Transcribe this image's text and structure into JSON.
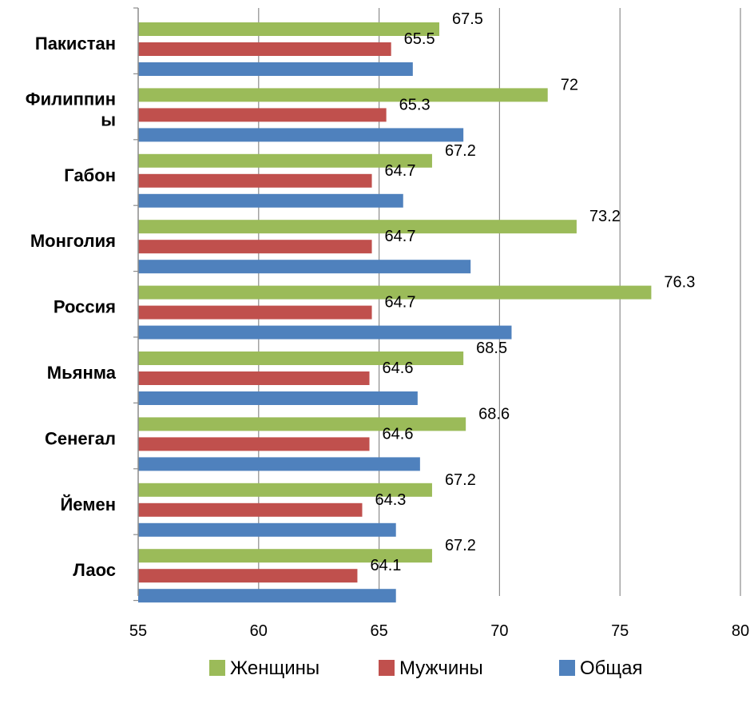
{
  "chart_data": {
    "type": "bar",
    "orientation": "horizontal",
    "categories": [
      "Пакистан",
      "Филиппины",
      "Габон",
      "Монголия",
      "Россия",
      "Мьянма",
      "Сенегал",
      "Йемен",
      "Лаос"
    ],
    "category_label_lines": [
      [
        "Пакистан"
      ],
      [
        "Филиппин",
        "ы"
      ],
      [
        "Габон"
      ],
      [
        "Монголия"
      ],
      [
        "Россия"
      ],
      [
        "Мьянма"
      ],
      [
        "Сенегал"
      ],
      [
        "Йемен"
      ],
      [
        "Лаос"
      ]
    ],
    "series": [
      {
        "name": "Женщины",
        "color": "#9BBB59",
        "values": [
          67.5,
          72,
          67.2,
          73.2,
          76.3,
          68.5,
          68.6,
          67.2,
          67.2
        ],
        "labels": [
          "67.5",
          "72",
          "67.2",
          "73.2",
          "76.3",
          "68.5",
          "68.6",
          "67.2",
          "67.2"
        ]
      },
      {
        "name": "Мужчины",
        "color": "#C0504D",
        "values": [
          65.5,
          65.3,
          64.7,
          64.7,
          64.7,
          64.6,
          64.6,
          64.3,
          64.1
        ],
        "labels": [
          "65.5",
          "65.3",
          "64.7",
          "64.7",
          "64.7",
          "64.6",
          "64.6",
          "64.3",
          "64.1"
        ]
      },
      {
        "name": "Общая",
        "color": "#4F81BD",
        "values": [
          66.4,
          68.5,
          66,
          68.8,
          70.5,
          66.6,
          66.7,
          65.7,
          65.7
        ]
      }
    ],
    "xlim": [
      55,
      80
    ],
    "xticks": [
      "55",
      "60",
      "65",
      "70",
      "75",
      "80"
    ],
    "grid": "vertical",
    "legend_position": "bottom"
  }
}
